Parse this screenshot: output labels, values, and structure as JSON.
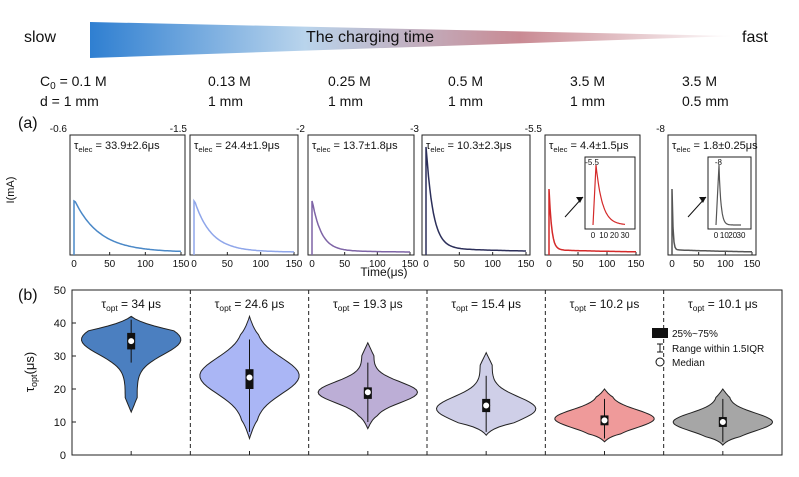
{
  "header": {
    "left_label": "slow",
    "right_label": "fast",
    "title": "The charging time",
    "gradient_colors": [
      "#2f7fd1",
      "#b9d4ec",
      "#c98a93",
      "#ffffff"
    ]
  },
  "conditions": [
    {
      "conc": "C0 = 0.1 M",
      "d": "d = 1 mm"
    },
    {
      "conc": "0.13 M",
      "d": "1 mm"
    },
    {
      "conc": "0.25 M",
      "d": "1 mm"
    },
    {
      "conc": "0.5 M",
      "d": "1 mm"
    },
    {
      "conc": "3.5 M",
      "d": "1 mm"
    },
    {
      "conc": "3.5 M",
      "d": "0.5 mm"
    }
  ],
  "panel_labels": {
    "a": "(a)",
    "b": "(b)"
  },
  "chart_data": [
    {
      "type": "line",
      "panel": "(a)",
      "xlabel": "Time(μs)",
      "ylabel": "I(mA)",
      "xlim": [
        0,
        150
      ],
      "xticks": [
        0,
        50,
        100,
        150
      ],
      "series": [
        {
          "annotation": "τelec = 33.9±2.6μs",
          "ymin_label": "-0.6",
          "peak_frac": 0.45,
          "tau": 33.9,
          "color": "#4a88c7",
          "xmax": 150,
          "inset": null
        },
        {
          "annotation": "τelec = 24.4±1.9μs",
          "ymin_label": "-1.5",
          "peak_frac": 0.45,
          "tau": 24.4,
          "color": "#8fa6ea",
          "xmax": 150,
          "inset": null
        },
        {
          "annotation": "τelec = 13.7±1.8μs",
          "ymin_label": "-2",
          "peak_frac": 0.45,
          "tau": 13.7,
          "color": "#7e64a6",
          "xmax": 150,
          "inset": null
        },
        {
          "annotation": "τelec = 10.3±2.3μs",
          "ymin_label": "-3",
          "peak_frac": 0.9,
          "tau": 10.3,
          "color": "#2c2f5a",
          "xmax": 150,
          "inset": null
        },
        {
          "annotation": "τelec = 4.4±1.5μs",
          "ymin_label": "-5.5",
          "peak_frac": 0.55,
          "tau": 4.4,
          "color": "#d42a2a",
          "xmax": 150,
          "inset": {
            "ylabel": "-5.5",
            "xticks": [
              0,
              10,
              20,
              30
            ]
          }
        },
        {
          "annotation": "τelec = 1.8±0.25μs",
          "ymin_label": "-8",
          "peak_frac": 0.55,
          "tau": 1.8,
          "color": "#555555",
          "xmax": 150,
          "inset": {
            "ylabel": "-8",
            "xticks": [
              0,
              10,
              20,
              30
            ]
          }
        }
      ]
    },
    {
      "type": "violin",
      "panel": "(b)",
      "ylabel": "τopt(μs)",
      "ylim": [
        0,
        50
      ],
      "yticks": [
        0,
        10,
        20,
        30,
        40,
        50
      ],
      "legend": {
        "box": "25%~75%",
        "whisker": "Range within 1.5IQR",
        "median": "Median"
      },
      "groups": [
        {
          "title": "τopt = 34 μs",
          "median": 34.5,
          "q1": 32,
          "q3": 37,
          "wlo": 28,
          "whi": 41,
          "min": 13,
          "max": 42,
          "peak": 35,
          "color": "#4b7fc0"
        },
        {
          "title": "τopt = 24.6 μs",
          "median": 23.5,
          "q1": 20,
          "q3": 26,
          "wlo": 7,
          "whi": 35,
          "min": 5,
          "max": 42,
          "peak": 24,
          "color": "#aab6f5"
        },
        {
          "title": "τopt = 19.3 μs",
          "median": 19,
          "q1": 17,
          "q3": 20.5,
          "wlo": 10,
          "whi": 28,
          "min": 8,
          "max": 34,
          "peak": 19,
          "color": "#bcaed6"
        },
        {
          "title": "τopt = 15.4 μs",
          "median": 15,
          "q1": 13,
          "q3": 17,
          "wlo": 7,
          "whi": 24,
          "min": 6,
          "max": 31,
          "peak": 14,
          "color": "#cfcfe8"
        },
        {
          "title": "τopt = 10.2 μs",
          "median": 10.5,
          "q1": 9,
          "q3": 12,
          "wlo": 5,
          "whi": 17,
          "min": 4,
          "max": 20,
          "peak": 11,
          "color": "#ef9a9a"
        },
        {
          "title": "τopt = 10.1 μs",
          "median": 10,
          "q1": 8.5,
          "q3": 11.5,
          "wlo": 4,
          "whi": 17,
          "min": 3,
          "max": 20,
          "peak": 10,
          "color": "#a6a6a6"
        }
      ]
    }
  ]
}
